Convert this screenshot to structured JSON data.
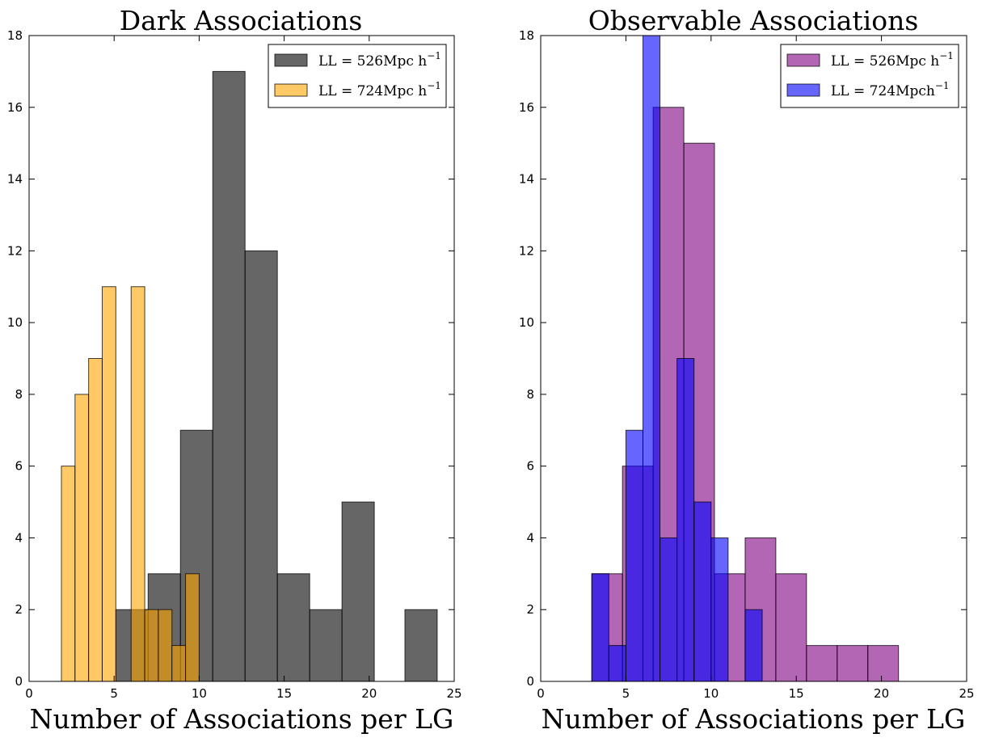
{
  "chart_data": [
    {
      "type": "bar",
      "title": "Dark Associations",
      "xlabel": "Number of Associations per LG",
      "ylabel": "",
      "xlim": [
        0,
        25
      ],
      "ylim": [
        0,
        18
      ],
      "xticks": [
        "0",
        "5",
        "10",
        "15",
        "20",
        "25"
      ],
      "yticks": [
        "0",
        "2",
        "4",
        "6",
        "8",
        "10",
        "12",
        "14",
        "16",
        "18"
      ],
      "legend_position": "top-right",
      "series": [
        {
          "name": "LL = 526Mpc h⁻¹",
          "name_main": "LL = 526Mpc h",
          "name_sup": "−1",
          "color": "#333333",
          "opacity": 0.75,
          "bins": [
            {
              "x0": 5.1,
              "x1": 7.0,
              "value": 2
            },
            {
              "x0": 7.0,
              "x1": 8.9,
              "value": 3
            },
            {
              "x0": 8.9,
              "x1": 10.8,
              "value": 7
            },
            {
              "x0": 10.8,
              "x1": 12.7,
              "value": 17
            },
            {
              "x0": 12.7,
              "x1": 14.6,
              "value": 12
            },
            {
              "x0": 14.6,
              "x1": 16.5,
              "value": 3
            },
            {
              "x0": 16.5,
              "x1": 18.4,
              "value": 2
            },
            {
              "x0": 18.4,
              "x1": 20.3,
              "value": 5
            },
            {
              "x0": 22.1,
              "x1": 24.0,
              "value": 2
            }
          ]
        },
        {
          "name": "LL = 724Mpc h⁻¹",
          "name_main": "LL = 724Mpc h",
          "name_sup": "−1",
          "color": "#FFA500",
          "opacity": 0.6,
          "bins": [
            {
              "x0": 1.9,
              "x1": 2.7,
              "value": 6
            },
            {
              "x0": 2.7,
              "x1": 3.5,
              "value": 8
            },
            {
              "x0": 3.5,
              "x1": 4.3,
              "value": 9
            },
            {
              "x0": 4.3,
              "x1": 5.1,
              "value": 11
            },
            {
              "x0": 5.1,
              "x1": 6.0,
              "value": 0
            },
            {
              "x0": 6.0,
              "x1": 6.8,
              "value": 11
            },
            {
              "x0": 6.8,
              "x1": 7.6,
              "value": 2
            },
            {
              "x0": 7.6,
              "x1": 8.4,
              "value": 2
            },
            {
              "x0": 8.4,
              "x1": 9.2,
              "value": 1
            },
            {
              "x0": 9.2,
              "x1": 10.0,
              "value": 3
            }
          ]
        }
      ]
    },
    {
      "type": "bar",
      "title": "Observable Associations",
      "xlabel": "Number of Associations per LG",
      "ylabel": "",
      "xlim": [
        0,
        25
      ],
      "ylim": [
        0,
        18
      ],
      "xticks": [
        "0",
        "5",
        "10",
        "15",
        "20",
        "25"
      ],
      "yticks": [
        "0",
        "2",
        "4",
        "6",
        "8",
        "10",
        "12",
        "14",
        "16",
        "18"
      ],
      "legend_position": "top-right",
      "series": [
        {
          "name": "LL = 526Mpc h⁻¹",
          "name_main": "LL = 526Mpc h",
          "name_sup": "−1",
          "color": "#800080",
          "opacity": 0.6,
          "bins": [
            {
              "x0": 3.0,
              "x1": 4.8,
              "value": 3
            },
            {
              "x0": 4.8,
              "x1": 6.6,
              "value": 6
            },
            {
              "x0": 6.6,
              "x1": 8.4,
              "value": 16
            },
            {
              "x0": 8.4,
              "x1": 10.2,
              "value": 15
            },
            {
              "x0": 10.2,
              "x1": 12.0,
              "value": 3
            },
            {
              "x0": 12.0,
              "x1": 13.8,
              "value": 4
            },
            {
              "x0": 13.8,
              "x1": 15.6,
              "value": 3
            },
            {
              "x0": 15.6,
              "x1": 17.4,
              "value": 1
            },
            {
              "x0": 17.4,
              "x1": 19.2,
              "value": 1
            },
            {
              "x0": 19.2,
              "x1": 21.0,
              "value": 1
            }
          ]
        },
        {
          "name": "LL = 724Mpch⁻¹",
          "name_main": "LL = 724Mpch",
          "name_sup": "−1",
          "color": "#0000FF",
          "opacity": 0.6,
          "bins": [
            {
              "x0": 3.0,
              "x1": 4.0,
              "value": 3
            },
            {
              "x0": 4.0,
              "x1": 5.0,
              "value": 1
            },
            {
              "x0": 5.0,
              "x1": 6.0,
              "value": 7
            },
            {
              "x0": 6.0,
              "x1": 7.0,
              "value": 18
            },
            {
              "x0": 7.0,
              "x1": 8.0,
              "value": 4
            },
            {
              "x0": 8.0,
              "x1": 9.0,
              "value": 9
            },
            {
              "x0": 9.0,
              "x1": 10.0,
              "value": 5
            },
            {
              "x0": 10.0,
              "x1": 11.0,
              "value": 4
            },
            {
              "x0": 11.0,
              "x1": 12.0,
              "value": 0
            },
            {
              "x0": 12.0,
              "x1": 13.0,
              "value": 2
            }
          ]
        }
      ]
    }
  ]
}
